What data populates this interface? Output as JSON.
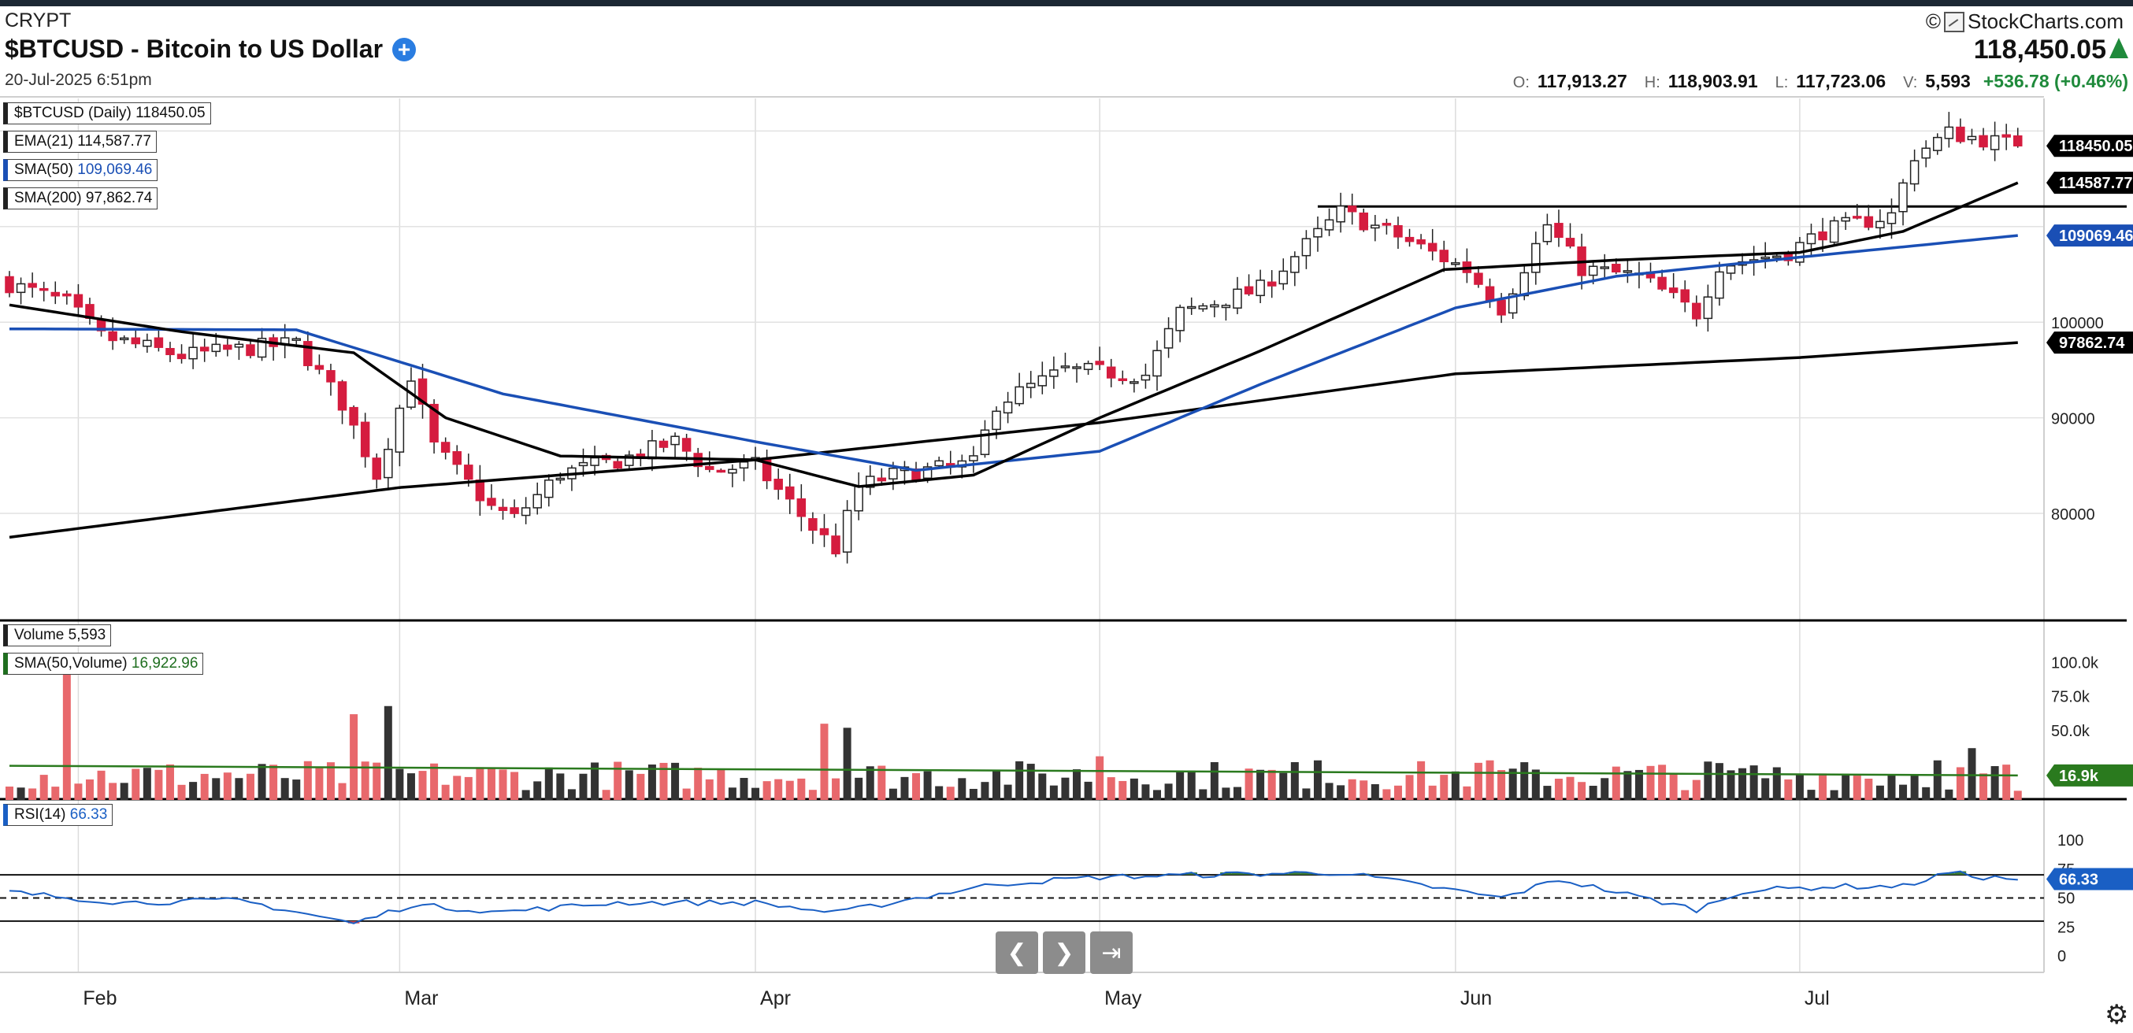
{
  "header": {
    "exchange": "CRYPT",
    "title": "$BTCUSD - Bitcoin to US Dollar",
    "datetime": "20-Jul-2025 6:51pm",
    "logo": "StockCharts.com",
    "last_price": "118,450.05",
    "ohlc": {
      "o_label": "O:",
      "o": "117,913.27",
      "h_label": "H:",
      "h": "118,903.91",
      "l_label": "L:",
      "l": "117,723.06",
      "v_label": "V:",
      "v": "5,593",
      "change": "+536.78 (+0.46%)"
    },
    "icons": {
      "add": "plus-circle-icon",
      "trend": "triangle-up-icon",
      "logo": "stockcharts-logo-icon"
    }
  },
  "colors": {
    "up": "#ffffff",
    "down": "#d51c3f",
    "ema": "#000000",
    "sma50": "#1a4fb5",
    "sma200": "#000000",
    "vol_up": "#333333",
    "vol_down": "#e8686c",
    "vol_sma": "#2a7a1e",
    "rsi": "#1a5fc4",
    "rsi_fill": "#3d7a33"
  },
  "legends": {
    "price": [
      {
        "label": "$BTCUSD (Daily)",
        "value": "118450.05",
        "color": "#111111"
      },
      {
        "label": "EMA(21)",
        "value": "114,587.77",
        "color": "#111111"
      },
      {
        "label": "SMA(50)",
        "value": "109,069.46",
        "color": "#1a4fb5"
      },
      {
        "label": "SMA(200)",
        "value": "97,862.74",
        "color": "#111111"
      }
    ],
    "volume": [
      {
        "label": "Volume",
        "value": "5,593",
        "color": "#111111"
      },
      {
        "label": "SMA(50,Volume)",
        "value": "16,922.96",
        "color": "#1f6e1f"
      }
    ],
    "rsi": [
      {
        "label": "RSI(14)",
        "value": "66.33",
        "color": "#1a5fc4"
      }
    ]
  },
  "price_tags": [
    {
      "text": "118450.05",
      "value": 118450.05,
      "bg": "#000000"
    },
    {
      "text": "114587.77",
      "value": 114587.77,
      "bg": "#000000"
    },
    {
      "text": "109069.46",
      "value": 109069.46,
      "bg": "#1a4fb5"
    },
    {
      "text": "97862.74",
      "value": 97862.74,
      "bg": "#000000"
    }
  ],
  "volume_tag": {
    "text": "16.9k",
    "value": 16922.96,
    "bg": "#2a7a1e"
  },
  "rsi_tag": {
    "text": "66.33",
    "value": 66.33,
    "bg": "#1a5fc4"
  },
  "chart_data": {
    "type": "candlestick",
    "symbol": "$BTCUSD",
    "interval": "Daily",
    "x_labels": [
      "Feb",
      "Mar",
      "Apr",
      "May",
      "Jun",
      "Jul"
    ],
    "y_ticks": [
      80000,
      90000,
      100000
    ],
    "price_range": [
      72000,
      126000
    ],
    "resistance_line": {
      "value": 112100,
      "from_date": "2025-05-20"
    },
    "candles_start": "2025-01-26",
    "close_anchors": [
      [
        "2025-01-26",
        104000
      ],
      [
        "2025-01-31",
        102000
      ],
      [
        "2025-02-03",
        98500
      ],
      [
        "2025-02-10",
        96500
      ],
      [
        "2025-02-20",
        97800
      ],
      [
        "2025-02-24",
        91500
      ],
      [
        "2025-02-27",
        84000
      ],
      [
        "2025-03-02",
        94500
      ],
      [
        "2025-03-04",
        87000
      ],
      [
        "2025-03-09",
        80600
      ],
      [
        "2025-03-11",
        79500
      ],
      [
        "2025-03-15",
        84200
      ],
      [
        "2025-03-20",
        85500
      ],
      [
        "2025-03-25",
        87500
      ],
      [
        "2025-03-28",
        84500
      ],
      [
        "2025-04-01",
        85000
      ],
      [
        "2025-04-06",
        78500
      ],
      [
        "2025-04-08",
        76300
      ],
      [
        "2025-04-10",
        82800
      ],
      [
        "2025-04-13",
        84000
      ],
      [
        "2025-04-20",
        85200
      ],
      [
        "2025-04-22",
        91500
      ],
      [
        "2025-04-28",
        95000
      ],
      [
        "2025-05-05",
        94500
      ],
      [
        "2025-05-08",
        101000
      ],
      [
        "2025-05-15",
        103500
      ],
      [
        "2025-05-22",
        111500
      ],
      [
        "2025-05-27",
        109000
      ],
      [
        "2025-06-02",
        105500
      ],
      [
        "2025-06-05",
        101500
      ],
      [
        "2025-06-09",
        110200
      ],
      [
        "2025-06-12",
        105600
      ],
      [
        "2025-06-17",
        104800
      ],
      [
        "2025-06-22",
        100900
      ],
      [
        "2025-06-24",
        106000
      ],
      [
        "2025-06-30",
        107300
      ],
      [
        "2025-07-03",
        109500
      ],
      [
        "2025-07-09",
        111200
      ],
      [
        "2025-07-11",
        117500
      ],
      [
        "2025-07-14",
        119800
      ],
      [
        "2025-07-20",
        118450
      ]
    ],
    "ema21_anchors": [
      [
        "2025-01-26",
        101800
      ],
      [
        "2025-02-10",
        99000
      ],
      [
        "2025-02-25",
        96800
      ],
      [
        "2025-03-05",
        90000
      ],
      [
        "2025-03-15",
        86000
      ],
      [
        "2025-04-01",
        85600
      ],
      [
        "2025-04-10",
        82800
      ],
      [
        "2025-04-20",
        84000
      ],
      [
        "2025-05-01",
        90000
      ],
      [
        "2025-05-15",
        97000
      ],
      [
        "2025-05-31",
        105500
      ],
      [
        "2025-06-15",
        106500
      ],
      [
        "2025-07-01",
        107300
      ],
      [
        "2025-07-10",
        109500
      ],
      [
        "2025-07-20",
        114587.77
      ]
    ],
    "sma50_anchors": [
      [
        "2025-01-26",
        99300
      ],
      [
        "2025-02-20",
        99200
      ],
      [
        "2025-03-10",
        92500
      ],
      [
        "2025-04-01",
        87500
      ],
      [
        "2025-04-15",
        84500
      ],
      [
        "2025-05-01",
        86500
      ],
      [
        "2025-05-15",
        93500
      ],
      [
        "2025-06-01",
        101500
      ],
      [
        "2025-06-15",
        104800
      ],
      [
        "2025-07-01",
        106800
      ],
      [
        "2025-07-20",
        109069.46
      ]
    ],
    "sma200_anchors": [
      [
        "2025-01-26",
        77500
      ],
      [
        "2025-03-01",
        82700
      ],
      [
        "2025-04-01",
        85600
      ],
      [
        "2025-05-01",
        89500
      ],
      [
        "2025-06-01",
        94600
      ],
      [
        "2025-07-01",
        96300
      ],
      [
        "2025-07-20",
        97862.74
      ]
    ],
    "volume": {
      "y_ticks": [
        100000,
        75000,
        50000
      ],
      "y_tick_labels": [
        "100.0k",
        "75.0k",
        "50.0k"
      ],
      "sma50": 16922.96,
      "spikes": [
        [
          "2025-01-31",
          106000
        ],
        [
          "2025-02-25",
          62000
        ],
        [
          "2025-02-28",
          68000
        ],
        [
          "2025-04-07",
          55000
        ],
        [
          "2025-04-09",
          52000
        ],
        [
          "2025-05-01",
          31000
        ],
        [
          "2025-05-20",
          28000
        ],
        [
          "2025-06-04",
          28000
        ],
        [
          "2025-06-24",
          26000
        ],
        [
          "2025-07-13",
          28000
        ],
        [
          "2025-07-16",
          37000
        ]
      ]
    },
    "rsi": {
      "y_ticks": [
        100,
        75,
        50,
        25,
        0
      ],
      "overbought": 70,
      "oversold": 30,
      "midline": 50,
      "anchors": [
        [
          "2025-01-26",
          55
        ],
        [
          "2025-02-05",
          46
        ],
        [
          "2025-02-15",
          48
        ],
        [
          "2025-02-25",
          28
        ],
        [
          "2025-03-02",
          44
        ],
        [
          "2025-03-10",
          38
        ],
        [
          "2025-03-20",
          46
        ],
        [
          "2025-04-01",
          46
        ],
        [
          "2025-04-08",
          37
        ],
        [
          "2025-04-15",
          50
        ],
        [
          "2025-04-22",
          62
        ],
        [
          "2025-05-01",
          68
        ],
        [
          "2025-05-10",
          70
        ],
        [
          "2025-05-22",
          72
        ],
        [
          "2025-06-05",
          50
        ],
        [
          "2025-06-10",
          66
        ],
        [
          "2025-06-22",
          40
        ],
        [
          "2025-06-26",
          56
        ],
        [
          "2025-07-04",
          60
        ],
        [
          "2025-07-10",
          60
        ],
        [
          "2025-07-14",
          72
        ],
        [
          "2025-07-17",
          68
        ],
        [
          "2025-07-20",
          66.33
        ]
      ]
    },
    "last_close": 118450.05
  },
  "nav": {
    "prev_icon": "chevron-left-icon",
    "next_icon": "chevron-right-icon",
    "end_icon": "skip-to-end-icon"
  },
  "settings_icon": "gear-icon"
}
